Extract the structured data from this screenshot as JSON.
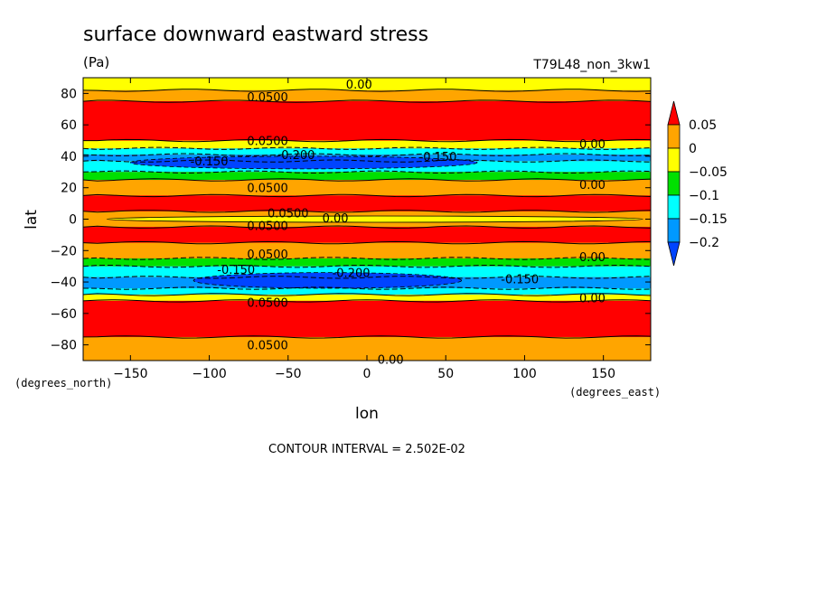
{
  "title": "surface downward eastward stress",
  "units": "(Pa)",
  "run_label": "T79L48_non_3kw1",
  "chart_data": {
    "type": "heatmap",
    "xlabel": "lon",
    "ylabel": "lat",
    "x_unit_label": "(degrees_east)",
    "y_unit_label": "(degrees_north)",
    "xlim": [
      -180,
      180
    ],
    "ylim": [
      -90,
      90
    ],
    "x_ticks": [
      -150,
      -100,
      -50,
      0,
      50,
      100,
      150
    ],
    "y_ticks": [
      -80,
      -60,
      -40,
      -20,
      0,
      20,
      40,
      60,
      80
    ],
    "contour_interval_text": "CONTOUR INTERVAL = 2.502E-02",
    "colorbar": {
      "labels": [
        "0.05",
        "0",
        "−0.05",
        "−0.1",
        "−0.15",
        "−0.2"
      ],
      "colors": [
        "#ff0000",
        "#ffa500",
        "#ffff00",
        "#00e000",
        "#00ffff",
        "#0099ff",
        "#0044ff"
      ]
    },
    "bands": [
      {
        "lat_min": 82,
        "lat_max": 90,
        "level": 0.0
      },
      {
        "lat_min": 75,
        "lat_max": 82,
        "level": 0.05
      },
      {
        "lat_min": 50,
        "lat_max": 75,
        "level": 0.075
      },
      {
        "lat_min": 45,
        "lat_max": 50,
        "level": 0.0
      },
      {
        "lat_min": 41,
        "lat_max": 45,
        "level": -0.1
      },
      {
        "lat_min": 37,
        "lat_max": 41,
        "level": -0.15
      },
      {
        "lat_min": 30,
        "lat_max": 37,
        "level": -0.12
      },
      {
        "lat_min": 25,
        "lat_max": 30,
        "level": -0.05
      },
      {
        "lat_min": 15,
        "lat_max": 25,
        "level": 0.05
      },
      {
        "lat_min": 5,
        "lat_max": 15,
        "level": 0.075
      },
      {
        "lat_min": -5,
        "lat_max": 5,
        "level": 0.05
      },
      {
        "lat_min": -15,
        "lat_max": -5,
        "level": 0.075
      },
      {
        "lat_min": -25,
        "lat_max": -15,
        "level": 0.05
      },
      {
        "lat_min": -30,
        "lat_max": -25,
        "level": -0.05
      },
      {
        "lat_min": -37,
        "lat_max": -30,
        "level": -0.12
      },
      {
        "lat_min": -44,
        "lat_max": -37,
        "level": -0.15
      },
      {
        "lat_min": -48,
        "lat_max": -44,
        "level": -0.1
      },
      {
        "lat_min": -52,
        "lat_max": -48,
        "level": 0.0
      },
      {
        "lat_min": -75,
        "lat_max": -52,
        "level": 0.075
      },
      {
        "lat_min": -90,
        "lat_max": -75,
        "level": 0.03
      }
    ],
    "cores": [
      {
        "lon_min": -150,
        "lon_max": 70,
        "lat_min": 32,
        "lat_max": 40,
        "level": -0.2
      },
      {
        "lon_min": -110,
        "lon_max": 60,
        "lat_min": -44,
        "lat_max": -34,
        "level": -0.2
      },
      {
        "lon_min": -165,
        "lon_max": 175,
        "lat_min": -2,
        "lat_max": 2,
        "level": 0.0
      }
    ],
    "contour_labels": [
      {
        "text": "0.00",
        "lon": -5,
        "lat": 86
      },
      {
        "text": "0.0500",
        "lon": -63,
        "lat": 78
      },
      {
        "text": "0.0500",
        "lon": -63,
        "lat": 50
      },
      {
        "text": "0.00",
        "lon": 143,
        "lat": 48
      },
      {
        "text": "-0.150",
        "lon": -100,
        "lat": 37
      },
      {
        "text": "-0.200",
        "lon": -45,
        "lat": 41
      },
      {
        "text": "-0.150",
        "lon": 45,
        "lat": 40
      },
      {
        "text": "0.00",
        "lon": 143,
        "lat": 22
      },
      {
        "text": "0.0500",
        "lon": -63,
        "lat": 20
      },
      {
        "text": "0.0500",
        "lon": -50,
        "lat": 4
      },
      {
        "text": "0.00",
        "lon": -20,
        "lat": 1
      },
      {
        "text": "0.0500",
        "lon": -63,
        "lat": -4
      },
      {
        "text": "0.0500",
        "lon": -63,
        "lat": -22
      },
      {
        "text": "0.00",
        "lon": 143,
        "lat": -24
      },
      {
        "text": "-0.200",
        "lon": -10,
        "lat": -34
      },
      {
        "text": "-0.150",
        "lon": 97,
        "lat": -38
      },
      {
        "text": "-0.150",
        "lon": -83,
        "lat": -32
      },
      {
        "text": "0.00",
        "lon": 143,
        "lat": -50
      },
      {
        "text": "0.0500",
        "lon": -63,
        "lat": -53
      },
      {
        "text": "0.0500",
        "lon": -63,
        "lat": -80
      },
      {
        "text": "0.00",
        "lon": 15,
        "lat": -89
      }
    ]
  }
}
